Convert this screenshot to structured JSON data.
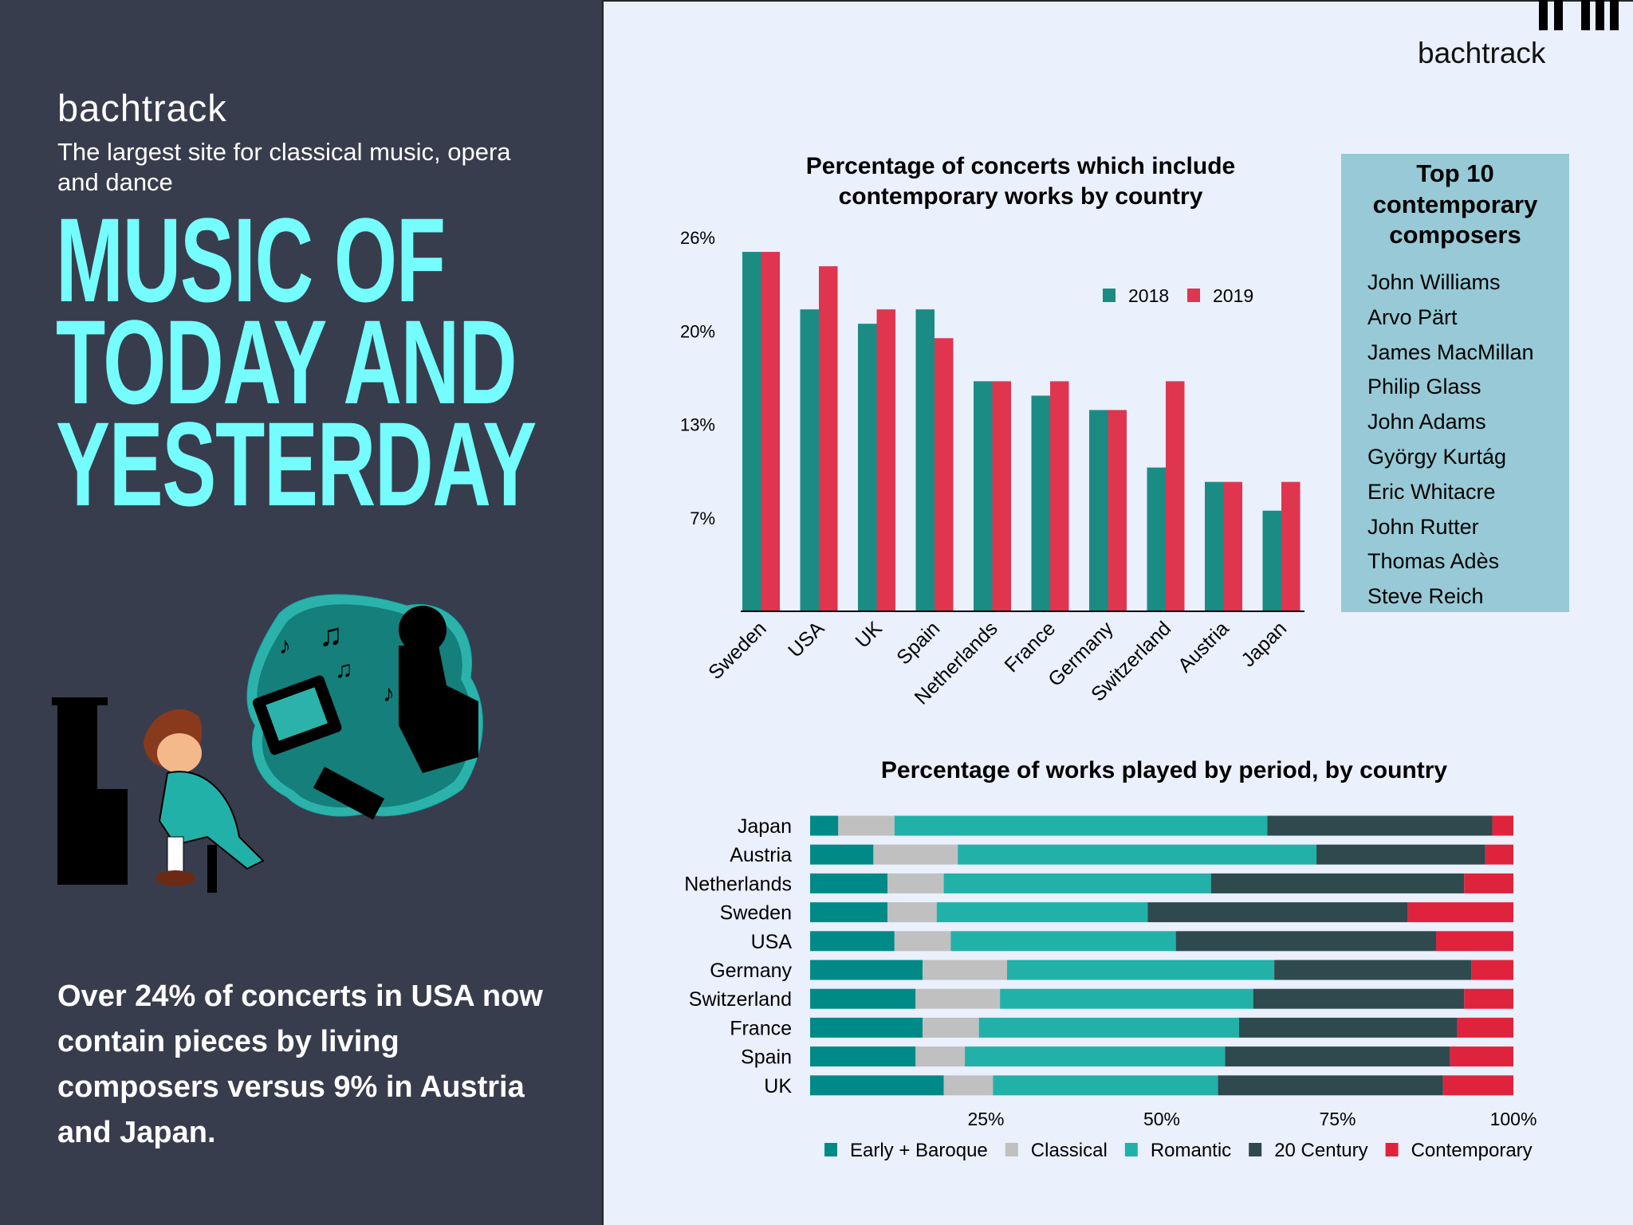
{
  "left_panel": {
    "brand": "bachtrack",
    "tagline": "The largest site for classical music, opera and dance",
    "title_lines": [
      "MUSIC OF",
      "TODAY AND",
      "YESTERDAY"
    ],
    "fact": "Over 24% of concerts in USA now contain pieces by living composers versus 9% in Austria and Japan.",
    "background": "#383d4d",
    "title_color": "#75fdfd"
  },
  "right_panel": {
    "brand": "bachtrack",
    "background": "#eaf0fc"
  },
  "composers": {
    "title": "Top 10 contemporary composers",
    "names": [
      "John Williams",
      "Arvo Pärt",
      "James MacMillan",
      "Philip Glass",
      "John Adams",
      "György Kurtág",
      "Eric Whitacre",
      "John Rutter",
      "Thomas Adès",
      "Steve Reich"
    ],
    "background": "#97cad6"
  },
  "chart_data": [
    {
      "type": "bar",
      "title": "Percentage of concerts which include contemporary works by country",
      "categories": [
        "Sweden",
        "USA",
        "UK",
        "Spain",
        "Netherlands",
        "France",
        "Germany",
        "Switzerland",
        "Austria",
        "Japan"
      ],
      "series": [
        {
          "name": "2018",
          "color": "#1a8c84",
          "values": [
            25,
            21,
            20,
            21,
            16,
            15,
            14,
            10,
            9,
            7
          ]
        },
        {
          "name": "2019",
          "color": "#e0354f",
          "values": [
            25,
            24,
            21,
            19,
            16,
            16,
            14,
            16,
            9,
            9
          ]
        }
      ],
      "ylim": [
        0,
        26
      ],
      "yticks": [
        26,
        19.5,
        13,
        6.5
      ],
      "ytick_labels": [
        "26%",
        "20%",
        "13%",
        "7%"
      ],
      "xlabel": "",
      "ylabel": "",
      "grid": false,
      "legend": "top-right"
    },
    {
      "type": "bar",
      "orientation": "horizontal-stacked",
      "title": "Percentage of works played by period, by country",
      "categories": [
        "Japan",
        "Austria",
        "Netherlands",
        "Sweden",
        "USA",
        "Germany",
        "Switzerland",
        "France",
        "Spain",
        "UK"
      ],
      "series": [
        {
          "name": "Early + Baroque",
          "color": "#008a87",
          "values": [
            4,
            9,
            11,
            11,
            12,
            16,
            15,
            16,
            15,
            19
          ]
        },
        {
          "name": "Classical",
          "color": "#c0c0c0",
          "values": [
            8,
            12,
            8,
            7,
            8,
            12,
            12,
            8,
            7,
            7
          ]
        },
        {
          "name": "Romantic",
          "color": "#22b1a8",
          "values": [
            53,
            51,
            38,
            30,
            32,
            38,
            36,
            37,
            37,
            32
          ]
        },
        {
          "name": "20 Century",
          "color": "#2e4a4e",
          "values": [
            32,
            24,
            36,
            37,
            37,
            28,
            30,
            31,
            32,
            32
          ]
        },
        {
          "name": "Contemporary",
          "color": "#e0233d",
          "values": [
            3,
            4,
            7,
            15,
            11,
            6,
            7,
            8,
            9,
            10
          ]
        }
      ],
      "xlim": [
        0,
        100
      ],
      "xticks": [
        25,
        50,
        75,
        100
      ],
      "xtick_labels": [
        "25%",
        "50%",
        "75%",
        "100%"
      ],
      "grid": false,
      "legend": "bottom"
    }
  ]
}
